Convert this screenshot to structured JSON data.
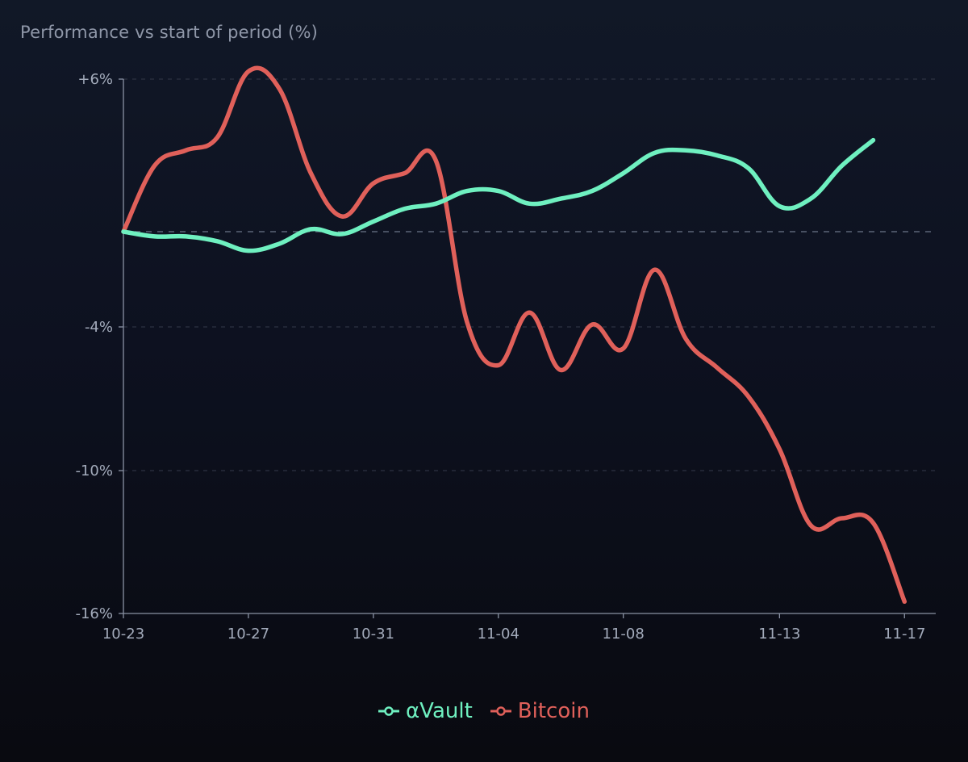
{
  "chart_data": {
    "type": "line",
    "title": "Performance vs start of period (%)",
    "x_ticks": [
      "10-23",
      "10-27",
      "10-31",
      "11-04",
      "11-08",
      "11-13",
      "11-17"
    ],
    "x_range": [
      "2024-10-23",
      "2024-11-18"
    ],
    "ylim": [
      -16,
      6
    ],
    "y_ticks": [
      {
        "value": 6,
        "label": "+6%"
      },
      {
        "value": -4,
        "label": "-4%"
      },
      {
        "value": -10,
        "label": "-10%"
      },
      {
        "value": -16,
        "label": "-16%"
      }
    ],
    "gridlines": [
      6,
      0,
      -4,
      -10
    ],
    "zero_line": 0,
    "grid": true,
    "legend": "bottom-center",
    "series": [
      {
        "name": "αVault",
        "color": "#6ff0c0",
        "points": [
          [
            "2024-10-23",
            0.0
          ],
          [
            "2024-10-24",
            -0.2
          ],
          [
            "2024-10-25",
            -0.2
          ],
          [
            "2024-10-26",
            -0.4
          ],
          [
            "2024-10-27",
            -0.8
          ],
          [
            "2024-10-28",
            -0.5
          ],
          [
            "2024-10-29",
            0.1
          ],
          [
            "2024-10-30",
            -0.1
          ],
          [
            "2024-10-31",
            0.4
          ],
          [
            "2024-11-01",
            0.9
          ],
          [
            "2024-11-02",
            1.1
          ],
          [
            "2024-11-03",
            1.6
          ],
          [
            "2024-11-04",
            1.6
          ],
          [
            "2024-11-05",
            1.1
          ],
          [
            "2024-11-06",
            1.3
          ],
          [
            "2024-11-07",
            1.6
          ],
          [
            "2024-11-08",
            2.3
          ],
          [
            "2024-11-09",
            3.1
          ],
          [
            "2024-11-10",
            3.2
          ],
          [
            "2024-11-11",
            3.0
          ],
          [
            "2024-11-12",
            2.5
          ],
          [
            "2024-11-13",
            1.0
          ],
          [
            "2024-11-14",
            1.3
          ],
          [
            "2024-11-15",
            2.6
          ],
          [
            "2024-11-16",
            3.6
          ]
        ]
      },
      {
        "name": "Bitcoin",
        "color": "#e0605a",
        "points": [
          [
            "2024-10-23",
            0.0
          ],
          [
            "2024-10-24",
            2.6
          ],
          [
            "2024-10-25",
            3.2
          ],
          [
            "2024-10-26",
            3.7
          ],
          [
            "2024-10-27",
            6.3
          ],
          [
            "2024-10-28",
            5.6
          ],
          [
            "2024-10-29",
            2.3
          ],
          [
            "2024-10-30",
            0.6
          ],
          [
            "2024-10-31",
            1.9
          ],
          [
            "2024-11-01",
            2.3
          ],
          [
            "2024-11-02",
            2.8
          ],
          [
            "2024-11-03",
            -3.8
          ],
          [
            "2024-11-04",
            -5.6
          ],
          [
            "2024-11-05",
            -3.4
          ],
          [
            "2024-11-06",
            -5.8
          ],
          [
            "2024-11-07",
            -3.9
          ],
          [
            "2024-11-08",
            -4.9
          ],
          [
            "2024-11-09",
            -1.6
          ],
          [
            "2024-11-10",
            -4.5
          ],
          [
            "2024-11-11",
            -5.7
          ],
          [
            "2024-11-12",
            -6.9
          ],
          [
            "2024-11-13",
            -9.1
          ],
          [
            "2024-11-14",
            -12.3
          ],
          [
            "2024-11-15",
            -12.0
          ],
          [
            "2024-11-16",
            -12.2
          ],
          [
            "2024-11-17",
            -15.5
          ]
        ]
      }
    ]
  }
}
